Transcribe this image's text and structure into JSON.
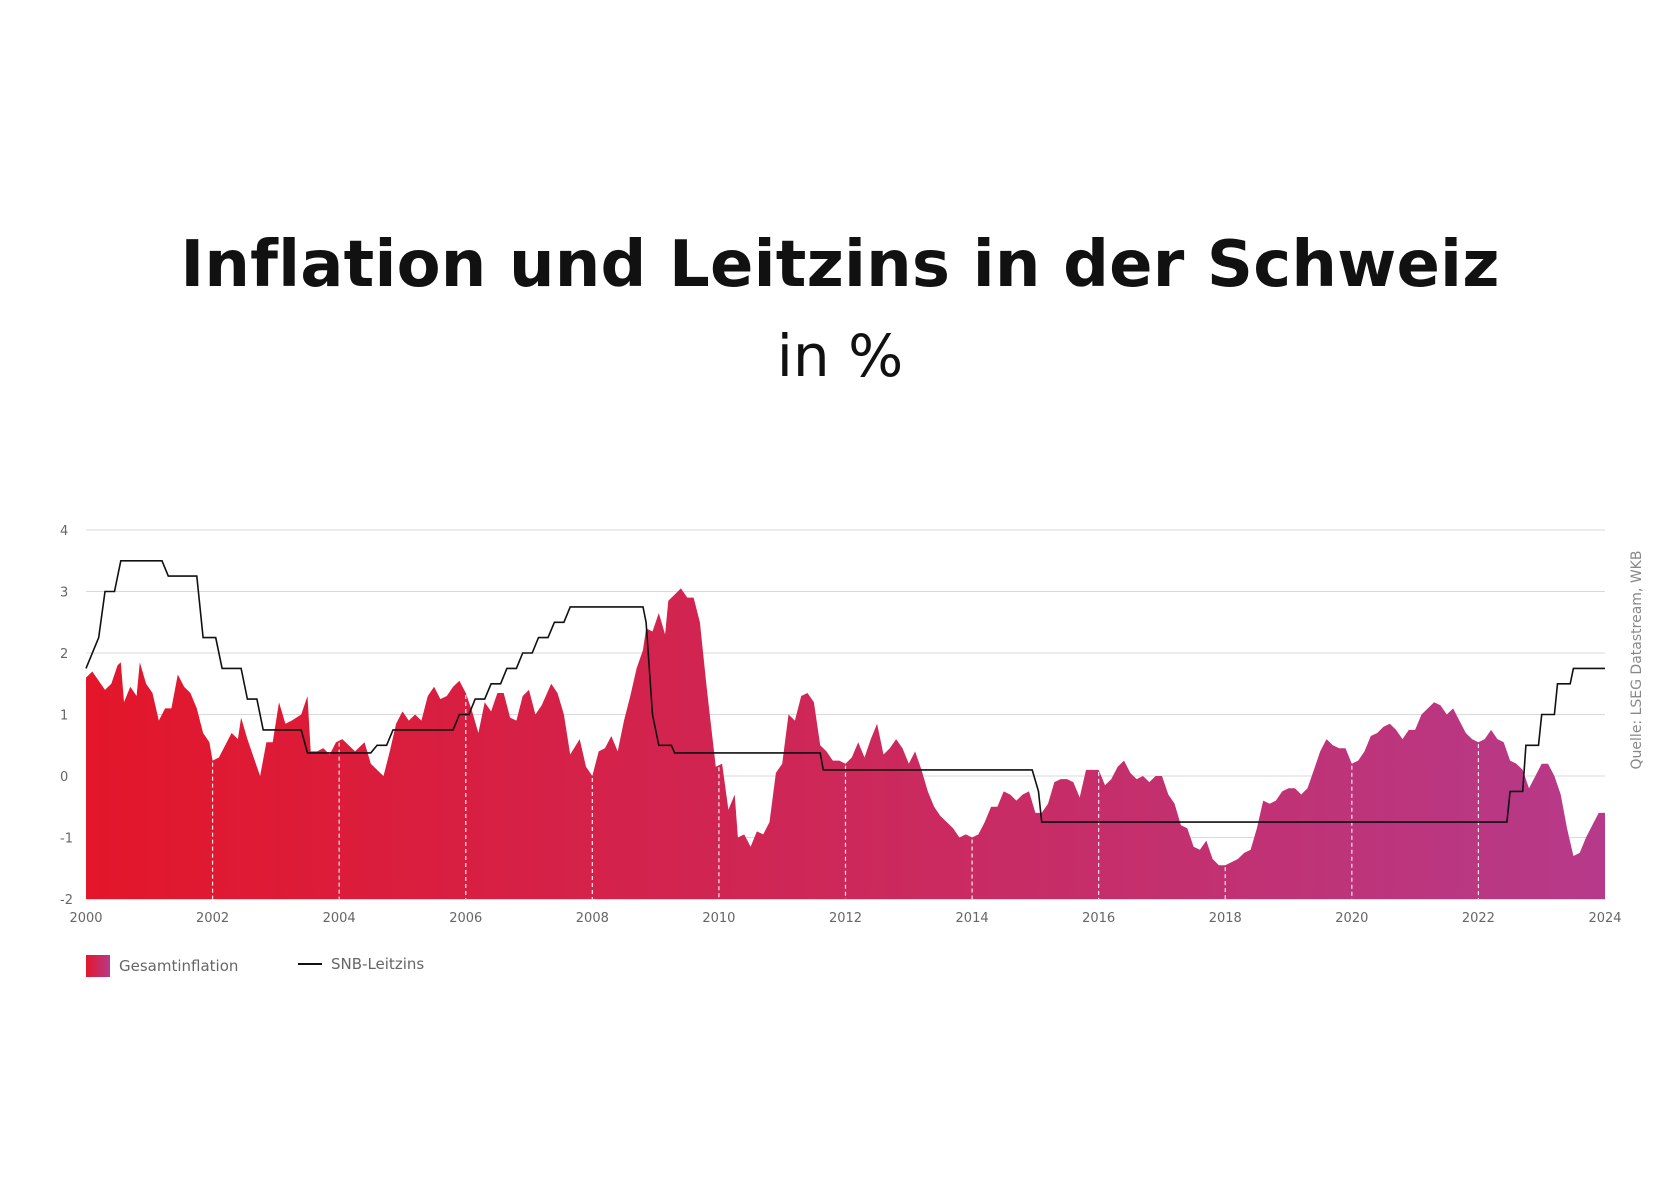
{
  "title": "Inflation und Leitzins in der Schweiz",
  "subtitle": "in %",
  "source": "Quelle: LSEG Datastream, WKB",
  "legend": {
    "inflation": "Gesamtinflation",
    "rate": "SNB-Leitzins"
  },
  "colors": {
    "gradient_start": "#e3162a",
    "gradient_end": "#b63a8a",
    "rate_line": "#111111",
    "grid": "#d9d9d9"
  },
  "chart_data": {
    "type": "area",
    "xlim": [
      2000,
      2024
    ],
    "ylim": [
      -2,
      4
    ],
    "grid": true,
    "legend_position": "bottom-left",
    "x_ticks": [
      "2000",
      "2002",
      "2004",
      "2006",
      "2008",
      "2010",
      "2012",
      "2014",
      "2016",
      "2018",
      "2020",
      "2022",
      "2024"
    ],
    "y_ticks": [
      "-2",
      "-1",
      "0",
      "1",
      "2",
      "3",
      "4"
    ],
    "series": [
      {
        "name": "Gesamtinflation",
        "kind": "area",
        "points": [
          [
            2000.0,
            1.6
          ],
          [
            2000.1,
            1.7
          ],
          [
            2000.3,
            1.4
          ],
          [
            2000.4,
            1.5
          ],
          [
            2000.5,
            1.8
          ],
          [
            2000.55,
            1.85
          ],
          [
            2000.6,
            1.2
          ],
          [
            2000.7,
            1.45
          ],
          [
            2000.8,
            1.3
          ],
          [
            2000.85,
            1.85
          ],
          [
            2000.95,
            1.5
          ],
          [
            2001.05,
            1.35
          ],
          [
            2001.15,
            0.9
          ],
          [
            2001.25,
            1.1
          ],
          [
            2001.35,
            1.1
          ],
          [
            2001.45,
            1.65
          ],
          [
            2001.55,
            1.45
          ],
          [
            2001.65,
            1.35
          ],
          [
            2001.75,
            1.1
          ],
          [
            2001.85,
            0.7
          ],
          [
            2001.95,
            0.55
          ],
          [
            2002.0,
            0.25
          ],
          [
            2002.1,
            0.3
          ],
          [
            2002.25,
            0.6
          ],
          [
            2002.3,
            0.7
          ],
          [
            2002.4,
            0.6
          ],
          [
            2002.45,
            0.95
          ],
          [
            2002.55,
            0.6
          ],
          [
            2002.65,
            0.3
          ],
          [
            2002.75,
            0.0
          ],
          [
            2002.85,
            0.55
          ],
          [
            2002.95,
            0.55
          ],
          [
            2003.05,
            1.2
          ],
          [
            2003.15,
            0.85
          ],
          [
            2003.25,
            0.9
          ],
          [
            2003.4,
            1.0
          ],
          [
            2003.5,
            1.3
          ],
          [
            2003.55,
            0.4
          ],
          [
            2003.65,
            0.4
          ],
          [
            2003.75,
            0.45
          ],
          [
            2003.85,
            0.35
          ],
          [
            2003.95,
            0.55
          ],
          [
            2004.05,
            0.6
          ],
          [
            2004.15,
            0.5
          ],
          [
            2004.25,
            0.4
          ],
          [
            2004.4,
            0.55
          ],
          [
            2004.5,
            0.2
          ],
          [
            2004.6,
            0.1
          ],
          [
            2004.7,
            0.0
          ],
          [
            2004.8,
            0.4
          ],
          [
            2004.9,
            0.85
          ],
          [
            2005.0,
            1.05
          ],
          [
            2005.1,
            0.9
          ],
          [
            2005.2,
            1.0
          ],
          [
            2005.3,
            0.9
          ],
          [
            2005.4,
            1.3
          ],
          [
            2005.5,
            1.45
          ],
          [
            2005.6,
            1.25
          ],
          [
            2005.7,
            1.3
          ],
          [
            2005.8,
            1.45
          ],
          [
            2005.9,
            1.55
          ],
          [
            2006.0,
            1.35
          ],
          [
            2006.1,
            1.05
          ],
          [
            2006.2,
            0.7
          ],
          [
            2006.3,
            1.2
          ],
          [
            2006.4,
            1.05
          ],
          [
            2006.5,
            1.35
          ],
          [
            2006.6,
            1.35
          ],
          [
            2006.7,
            0.95
          ],
          [
            2006.8,
            0.9
          ],
          [
            2006.9,
            1.3
          ],
          [
            2007.0,
            1.4
          ],
          [
            2007.1,
            1.0
          ],
          [
            2007.2,
            1.15
          ],
          [
            2007.35,
            1.5
          ],
          [
            2007.45,
            1.35
          ],
          [
            2007.55,
            1.0
          ],
          [
            2007.65,
            0.35
          ],
          [
            2007.8,
            0.6
          ],
          [
            2007.9,
            0.15
          ],
          [
            2008.0,
            0.0
          ],
          [
            2008.1,
            0.4
          ],
          [
            2008.2,
            0.45
          ],
          [
            2008.3,
            0.65
          ],
          [
            2008.4,
            0.4
          ],
          [
            2008.5,
            0.9
          ],
          [
            2008.6,
            1.3
          ],
          [
            2008.7,
            1.75
          ],
          [
            2008.8,
            2.05
          ],
          [
            2008.85,
            2.4
          ],
          [
            2008.95,
            2.35
          ],
          [
            2009.05,
            2.65
          ],
          [
            2009.15,
            2.3
          ],
          [
            2009.2,
            2.85
          ],
          [
            2009.3,
            2.95
          ],
          [
            2009.4,
            3.05
          ],
          [
            2009.5,
            2.9
          ],
          [
            2009.6,
            2.9
          ],
          [
            2009.7,
            2.5
          ],
          [
            2009.8,
            1.5
          ],
          [
            2009.85,
            1.05
          ],
          [
            2009.95,
            0.15
          ],
          [
            2010.05,
            0.2
          ],
          [
            2010.15,
            -0.55
          ],
          [
            2010.25,
            -0.3
          ],
          [
            2010.3,
            -1.0
          ],
          [
            2010.4,
            -0.95
          ],
          [
            2010.5,
            -1.15
          ],
          [
            2010.6,
            -0.9
          ],
          [
            2010.7,
            -0.95
          ],
          [
            2010.8,
            -0.75
          ],
          [
            2010.9,
            0.05
          ],
          [
            2011.0,
            0.2
          ],
          [
            2011.1,
            1.0
          ],
          [
            2011.2,
            0.9
          ],
          [
            2011.3,
            1.3
          ],
          [
            2011.4,
            1.35
          ],
          [
            2011.5,
            1.2
          ],
          [
            2011.6,
            0.5
          ],
          [
            2011.7,
            0.4
          ],
          [
            2011.8,
            0.25
          ],
          [
            2011.9,
            0.25
          ],
          [
            2012.0,
            0.2
          ],
          [
            2012.1,
            0.3
          ],
          [
            2012.2,
            0.55
          ],
          [
            2012.3,
            0.3
          ],
          [
            2012.4,
            0.6
          ],
          [
            2012.5,
            0.85
          ],
          [
            2012.6,
            0.35
          ],
          [
            2012.7,
            0.45
          ],
          [
            2012.8,
            0.6
          ],
          [
            2012.9,
            0.45
          ],
          [
            2013.0,
            0.2
          ],
          [
            2013.1,
            0.4
          ],
          [
            2013.2,
            0.1
          ],
          [
            2013.3,
            -0.25
          ],
          [
            2013.4,
            -0.5
          ],
          [
            2013.5,
            -0.65
          ],
          [
            2013.6,
            -0.75
          ],
          [
            2013.7,
            -0.85
          ],
          [
            2013.8,
            -1.0
          ],
          [
            2013.9,
            -0.95
          ],
          [
            2014.0,
            -1.0
          ],
          [
            2014.1,
            -0.95
          ],
          [
            2014.2,
            -0.75
          ],
          [
            2014.3,
            -0.5
          ],
          [
            2014.4,
            -0.5
          ],
          [
            2014.5,
            -0.25
          ],
          [
            2014.6,
            -0.3
          ],
          [
            2014.7,
            -0.4
          ],
          [
            2014.8,
            -0.3
          ],
          [
            2014.9,
            -0.25
          ],
          [
            2015.0,
            -0.6
          ],
          [
            2015.1,
            -0.6
          ],
          [
            2015.2,
            -0.45
          ],
          [
            2015.3,
            -0.1
          ],
          [
            2015.4,
            -0.05
          ],
          [
            2015.5,
            -0.05
          ],
          [
            2015.6,
            -0.1
          ],
          [
            2015.7,
            -0.35
          ],
          [
            2015.8,
            0.1
          ],
          [
            2015.9,
            0.1
          ],
          [
            2016.0,
            0.1
          ],
          [
            2016.1,
            -0.15
          ],
          [
            2016.2,
            -0.05
          ],
          [
            2016.3,
            0.15
          ],
          [
            2016.4,
            0.25
          ],
          [
            2016.5,
            0.05
          ],
          [
            2016.6,
            -0.05
          ],
          [
            2016.7,
            0.0
          ],
          [
            2016.8,
            -0.1
          ],
          [
            2016.9,
            0.0
          ],
          [
            2017.0,
            0.0
          ],
          [
            2017.1,
            -0.3
          ],
          [
            2017.2,
            -0.45
          ],
          [
            2017.3,
            -0.8
          ],
          [
            2017.4,
            -0.85
          ],
          [
            2017.5,
            -1.15
          ],
          [
            2017.6,
            -1.2
          ],
          [
            2017.7,
            -1.05
          ],
          [
            2017.8,
            -1.35
          ],
          [
            2017.9,
            -1.45
          ],
          [
            2018.0,
            -1.45
          ],
          [
            2018.1,
            -1.4
          ],
          [
            2018.2,
            -1.35
          ],
          [
            2018.3,
            -1.25
          ],
          [
            2018.4,
            -1.2
          ],
          [
            2018.5,
            -0.85
          ],
          [
            2018.6,
            -0.4
          ],
          [
            2018.7,
            -0.45
          ],
          [
            2018.8,
            -0.4
          ],
          [
            2018.9,
            -0.25
          ],
          [
            2019.0,
            -0.2
          ],
          [
            2019.1,
            -0.2
          ],
          [
            2019.2,
            -0.3
          ],
          [
            2019.3,
            -0.2
          ],
          [
            2019.4,
            0.1
          ],
          [
            2019.5,
            0.4
          ],
          [
            2019.6,
            0.6
          ],
          [
            2019.7,
            0.5
          ],
          [
            2019.8,
            0.45
          ],
          [
            2019.9,
            0.45
          ],
          [
            2020.0,
            0.2
          ],
          [
            2020.1,
            0.25
          ],
          [
            2020.2,
            0.4
          ],
          [
            2020.3,
            0.65
          ],
          [
            2020.4,
            0.7
          ],
          [
            2020.5,
            0.8
          ],
          [
            2020.6,
            0.85
          ],
          [
            2020.7,
            0.75
          ],
          [
            2020.8,
            0.6
          ],
          [
            2020.9,
            0.75
          ],
          [
            2021.0,
            0.75
          ],
          [
            2021.1,
            1.0
          ],
          [
            2021.2,
            1.1
          ],
          [
            2021.3,
            1.2
          ],
          [
            2021.4,
            1.15
          ],
          [
            2021.5,
            1.0
          ],
          [
            2021.6,
            1.1
          ],
          [
            2021.7,
            0.9
          ],
          [
            2021.8,
            0.7
          ],
          [
            2021.9,
            0.6
          ],
          [
            2022.0,
            0.55
          ],
          [
            2022.1,
            0.6
          ],
          [
            2022.2,
            0.75
          ],
          [
            2022.3,
            0.6
          ],
          [
            2022.4,
            0.55
          ],
          [
            2022.5,
            0.25
          ],
          [
            2022.6,
            0.2
          ],
          [
            2022.7,
            0.1
          ],
          [
            2022.8,
            -0.2
          ],
          [
            2022.9,
            0.0
          ],
          [
            2023.0,
            0.2
          ],
          [
            2023.1,
            0.2
          ],
          [
            2023.2,
            0.0
          ],
          [
            2023.3,
            -0.3
          ],
          [
            2023.4,
            -0.85
          ],
          [
            2023.5,
            -1.3
          ],
          [
            2023.6,
            -1.25
          ],
          [
            2023.7,
            -1.0
          ],
          [
            2023.8,
            -0.8
          ],
          [
            2023.9,
            -0.6
          ],
          [
            2024.0,
            -0.6
          ]
        ]
      },
      {
        "name": "SNB-Leitzins",
        "kind": "step",
        "points": [
          [
            2000.0,
            1.75
          ],
          [
            2000.2,
            2.25
          ],
          [
            2000.3,
            3.0
          ],
          [
            2000.45,
            3.0
          ],
          [
            2000.55,
            3.5
          ],
          [
            2001.2,
            3.5
          ],
          [
            2001.3,
            3.25
          ],
          [
            2001.75,
            3.25
          ],
          [
            2001.85,
            2.25
          ],
          [
            2002.05,
            2.25
          ],
          [
            2002.15,
            1.75
          ],
          [
            2002.45,
            1.75
          ],
          [
            2002.55,
            1.25
          ],
          [
            2002.7,
            1.25
          ],
          [
            2002.8,
            0.75
          ],
          [
            2003.4,
            0.75
          ],
          [
            2003.5,
            0.375
          ],
          [
            2004.5,
            0.375
          ],
          [
            2004.6,
            0.5
          ],
          [
            2004.75,
            0.5
          ],
          [
            2004.85,
            0.75
          ],
          [
            2005.8,
            0.75
          ],
          [
            2005.9,
            1.0
          ],
          [
            2006.05,
            1.0
          ],
          [
            2006.15,
            1.25
          ],
          [
            2006.3,
            1.25
          ],
          [
            2006.4,
            1.5
          ],
          [
            2006.55,
            1.5
          ],
          [
            2006.65,
            1.75
          ],
          [
            2006.8,
            1.75
          ],
          [
            2006.9,
            2.0
          ],
          [
            2007.05,
            2.0
          ],
          [
            2007.15,
            2.25
          ],
          [
            2007.3,
            2.25
          ],
          [
            2007.4,
            2.5
          ],
          [
            2007.55,
            2.5
          ],
          [
            2007.65,
            2.75
          ],
          [
            2008.8,
            2.75
          ],
          [
            2008.85,
            2.5
          ],
          [
            2008.95,
            1.0
          ],
          [
            2009.05,
            0.5
          ],
          [
            2009.25,
            0.5
          ],
          [
            2009.3,
            0.375
          ],
          [
            2011.6,
            0.375
          ],
          [
            2011.65,
            0.1
          ],
          [
            2014.95,
            0.1
          ],
          [
            2015.05,
            -0.25
          ],
          [
            2015.1,
            -0.75
          ],
          [
            2022.45,
            -0.75
          ],
          [
            2022.5,
            -0.25
          ],
          [
            2022.7,
            -0.25
          ],
          [
            2022.75,
            0.5
          ],
          [
            2022.95,
            0.5
          ],
          [
            2023.0,
            1.0
          ],
          [
            2023.2,
            1.0
          ],
          [
            2023.25,
            1.5
          ],
          [
            2023.45,
            1.5
          ],
          [
            2023.5,
            1.75
          ],
          [
            2024.0,
            1.75
          ]
        ]
      }
    ]
  }
}
